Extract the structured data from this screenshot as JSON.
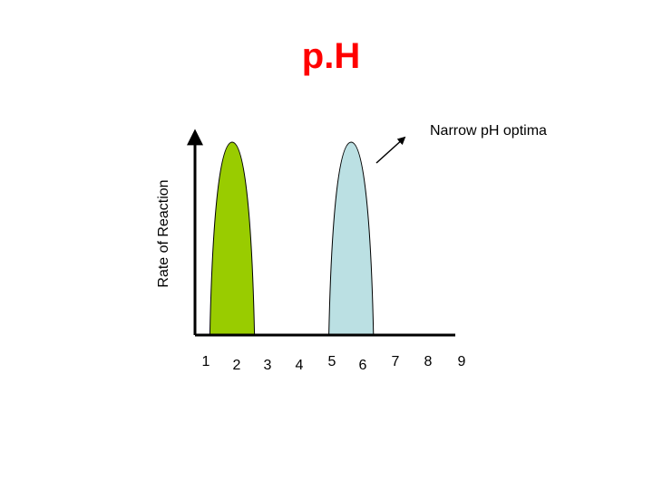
{
  "chart_data": {
    "type": "area",
    "title": "p.H",
    "xlabel": "",
    "ylabel": "Rate of Reaction",
    "x_ticks": [
      "1",
      "2",
      "3",
      "4",
      "5",
      "6",
      "7",
      "8",
      "9"
    ],
    "xlim": [
      0.75,
      9.5
    ],
    "ylim": [
      0,
      1
    ],
    "grid": false,
    "annotation": "Narrow pH optima",
    "series": [
      {
        "x": [
          1.25,
          1.75,
          2.25,
          2.75
        ],
        "y": [
          0,
          1,
          1,
          0
        ],
        "color": "#99cc00"
      },
      {
        "x": [
          5.25,
          5.75,
          6.25,
          6.75
        ],
        "y": [
          0,
          1,
          1,
          0
        ],
        "color": "#bbe0e3"
      }
    ]
  }
}
